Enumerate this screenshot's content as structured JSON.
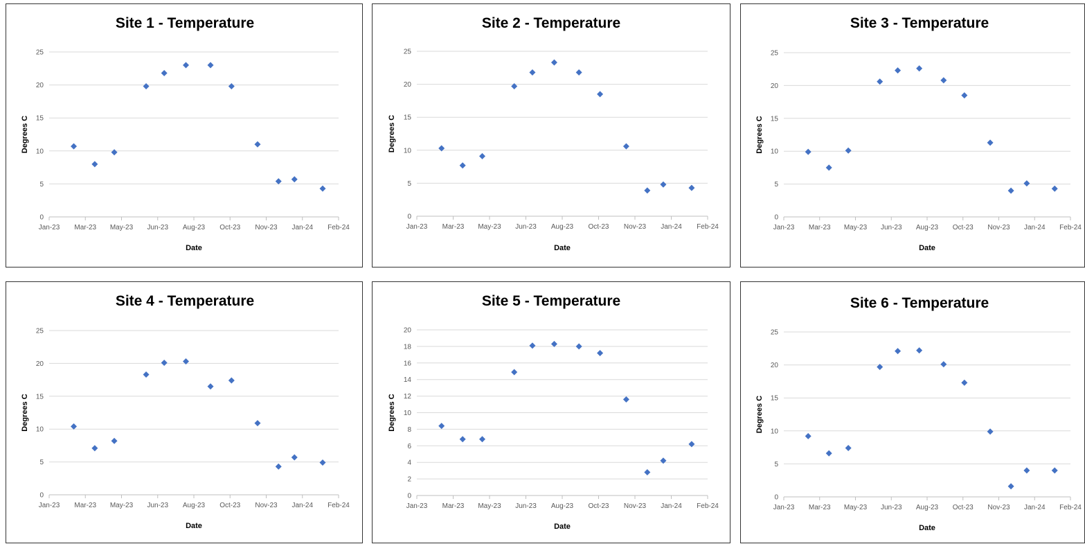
{
  "chart_data": [
    {
      "type": "scatter",
      "title": "Site 1 - Temperature",
      "xlabel": "Date",
      "ylabel": "Degrees C",
      "x_tick_labels": [
        "Jan-23",
        "Mar-23",
        "May-23",
        "Jun-23",
        "Aug-23",
        "Oct-23",
        "Nov-23",
        "Jan-24",
        "Feb-24"
      ],
      "xlim": [
        "2023-01-01",
        "2024-02-05"
      ],
      "ylim": [
        0,
        25
      ],
      "y_ticks": [
        0,
        5,
        10,
        15,
        20,
        25
      ],
      "grid": true,
      "legend": "none",
      "marker": "diamond",
      "color": "#4472c4",
      "series": [
        {
          "x": [
            "2023-02-04",
            "2023-03-05",
            "2023-04-01",
            "2023-05-15",
            "2023-06-09",
            "2023-07-09",
            "2023-08-12",
            "2023-09-10",
            "2023-10-16",
            "2023-11-14",
            "2023-12-06",
            "2024-01-14"
          ],
          "y": [
            10.7,
            8.0,
            9.8,
            19.8,
            21.8,
            23.0,
            23.0,
            19.8,
            11.0,
            5.4,
            5.7,
            4.3
          ]
        }
      ]
    },
    {
      "type": "scatter",
      "title": "Site 2 - Temperature",
      "xlabel": "Date",
      "ylabel": "Degrees C",
      "x_tick_labels": [
        "Jan-23",
        "Mar-23",
        "May-23",
        "Jun-23",
        "Aug-23",
        "Oct-23",
        "Nov-23",
        "Jan-24",
        "Feb-24"
      ],
      "xlim": [
        "2023-01-01",
        "2024-02-05"
      ],
      "ylim": [
        0,
        25
      ],
      "y_ticks": [
        0,
        5,
        10,
        15,
        20,
        25
      ],
      "grid": true,
      "legend": "none",
      "marker": "diamond",
      "color": "#4472c4",
      "series": [
        {
          "x": [
            "2023-02-04",
            "2023-03-05",
            "2023-04-01",
            "2023-05-15",
            "2023-06-09",
            "2023-07-09",
            "2023-08-12",
            "2023-09-10",
            "2023-10-16",
            "2023-11-14",
            "2023-12-06",
            "2024-01-14"
          ],
          "y": [
            10.3,
            7.7,
            9.1,
            19.7,
            21.8,
            23.3,
            21.8,
            18.5,
            10.6,
            3.9,
            4.8,
            4.3
          ]
        }
      ]
    },
    {
      "type": "scatter",
      "title": "Site 3 - Temperature",
      "xlabel": "Date",
      "ylabel": "Degrees C",
      "x_tick_labels": [
        "Jan-23",
        "Mar-23",
        "May-23",
        "Jun-23",
        "Aug-23",
        "Oct-23",
        "Nov-23",
        "Jan-24",
        "Feb-24"
      ],
      "xlim": [
        "2023-01-01",
        "2024-02-05"
      ],
      "ylim": [
        0,
        25
      ],
      "y_ticks": [
        0,
        5,
        10,
        15,
        20,
        25
      ],
      "grid": true,
      "legend": "none",
      "marker": "diamond",
      "color": "#4472c4",
      "series": [
        {
          "x": [
            "2023-02-04",
            "2023-03-05",
            "2023-04-01",
            "2023-05-15",
            "2023-06-09",
            "2023-07-09",
            "2023-08-12",
            "2023-09-10",
            "2023-10-16",
            "2023-11-14",
            "2023-12-06",
            "2024-01-14"
          ],
          "y": [
            9.9,
            7.5,
            10.1,
            20.6,
            22.3,
            22.6,
            20.8,
            18.5,
            11.3,
            4.0,
            5.1,
            4.3
          ]
        }
      ]
    },
    {
      "type": "scatter",
      "title": "Site 4 - Temperature",
      "xlabel": "Date",
      "ylabel": "Degrees C",
      "x_tick_labels": [
        "Jan-23",
        "Mar-23",
        "May-23",
        "Jun-23",
        "Aug-23",
        "Oct-23",
        "Nov-23",
        "Jan-24",
        "Feb-24"
      ],
      "xlim": [
        "2023-01-01",
        "2024-02-05"
      ],
      "ylim": [
        0,
        25
      ],
      "y_ticks": [
        0,
        5,
        10,
        15,
        20,
        25
      ],
      "grid": true,
      "legend": "none",
      "marker": "diamond",
      "color": "#4472c4",
      "series": [
        {
          "x": [
            "2023-02-04",
            "2023-03-05",
            "2023-04-01",
            "2023-05-15",
            "2023-06-09",
            "2023-07-09",
            "2023-08-12",
            "2023-09-10",
            "2023-10-16",
            "2023-11-14",
            "2023-12-06",
            "2024-01-14"
          ],
          "y": [
            10.4,
            7.1,
            8.2,
            18.3,
            20.1,
            20.3,
            16.5,
            17.4,
            10.9,
            4.3,
            5.7,
            4.9
          ]
        }
      ]
    },
    {
      "type": "scatter",
      "title": "Site 5 - Temperature",
      "xlabel": "Date",
      "ylabel": "Degrees C",
      "x_tick_labels": [
        "Jan-23",
        "Mar-23",
        "May-23",
        "Jun-23",
        "Aug-23",
        "Oct-23",
        "Nov-23",
        "Jan-24",
        "Feb-24"
      ],
      "xlim": [
        "2023-01-01",
        "2024-02-05"
      ],
      "ylim": [
        0,
        20
      ],
      "y_ticks": [
        0,
        2,
        4,
        6,
        8,
        10,
        12,
        14,
        16,
        18,
        20
      ],
      "grid": true,
      "legend": "none",
      "marker": "diamond",
      "color": "#4472c4",
      "series": [
        {
          "x": [
            "2023-02-04",
            "2023-03-05",
            "2023-04-01",
            "2023-05-15",
            "2023-06-09",
            "2023-07-09",
            "2023-08-12",
            "2023-09-10",
            "2023-10-16",
            "2023-11-14",
            "2023-12-06",
            "2024-01-14"
          ],
          "y": [
            8.4,
            6.8,
            6.8,
            14.9,
            18.1,
            18.3,
            18.0,
            17.2,
            11.6,
            2.8,
            4.2,
            6.2
          ]
        }
      ]
    },
    {
      "type": "scatter",
      "title": "Site 6 - Temperature",
      "xlabel": "Date",
      "ylabel": "Degrees C",
      "x_tick_labels": [
        "Jan-23",
        "Mar-23",
        "May-23",
        "Jun-23",
        "Aug-23",
        "Oct-23",
        "Nov-23",
        "Jan-24",
        "Feb-24"
      ],
      "xlim": [
        "2023-01-01",
        "2024-02-05"
      ],
      "ylim": [
        0,
        25
      ],
      "y_ticks": [
        0,
        5,
        10,
        15,
        20,
        25
      ],
      "grid": true,
      "legend": "none",
      "marker": "diamond",
      "color": "#4472c4",
      "series": [
        {
          "x": [
            "2023-02-04",
            "2023-03-05",
            "2023-04-01",
            "2023-05-15",
            "2023-06-09",
            "2023-07-09",
            "2023-08-12",
            "2023-09-10",
            "2023-10-16",
            "2023-11-14",
            "2023-12-06",
            "2024-01-14"
          ],
          "y": [
            9.2,
            6.6,
            7.4,
            19.7,
            22.1,
            22.2,
            20.1,
            17.3,
            9.9,
            1.6,
            4.0,
            4.0
          ]
        }
      ]
    }
  ]
}
